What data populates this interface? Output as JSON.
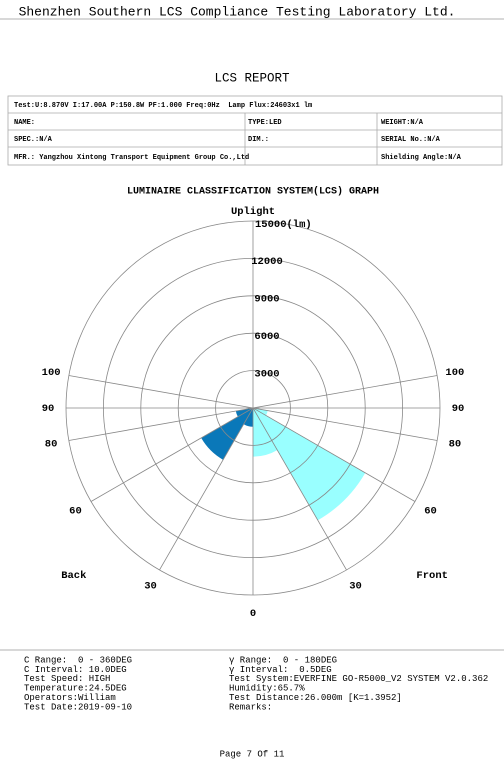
{
  "header": {
    "lab": "Shenzhen Southern LCS Compliance Testing Laboratory Ltd.",
    "title": "LCS REPORT"
  },
  "info_table": {
    "rows": [
      [
        "Test:U:8.870V I:17.00A P:150.8W PF:1.000 Freq:0Hz  Lamp Flux:24603x1 lm"
      ],
      [
        "NAME:",
        "TYPE:LED",
        "WEIGHT:N/A"
      ],
      [
        "SPEC.:N/A",
        "DIM.:",
        "SERIAL No.:N/A"
      ],
      [
        "MFR.: Yangzhou Xintong Transport Equipment Group Co.,Ltd",
        "Shielding Angle:N/A"
      ]
    ]
  },
  "chart_data": {
    "type": "polar",
    "title": "LUMINAIRE CLASSIFICATION SYSTEM(LCS) GRAPH",
    "up_label": "Uplight",
    "front_label": "Front",
    "back_label": "Back",
    "rlim": [
      0,
      15000
    ],
    "rticks": [
      3000,
      6000,
      9000,
      12000,
      {
        "value": 15000,
        "label": "15000(lm)"
      }
    ],
    "angle_ticks": [
      0,
      30,
      60,
      80,
      90,
      100
    ],
    "zone_edges": [
      0,
      30,
      60,
      80,
      90
    ],
    "series": [
      {
        "color": "#99ffff",
        "values": [
          3900,
          10400,
          1200,
          200
        ]
      },
      {
        "color": "#0a78b9",
        "values": [
          1500,
          4800,
          1400,
          400
        ]
      }
    ]
  },
  "params": {
    "left": [
      "C Range:  0 - 360DEG",
      "C Interval: 10.0DEG",
      "Test Speed: HIGH",
      "Temperature:24.5DEG",
      "Operators:William",
      "Test Date:2019-09-10"
    ],
    "right": [
      "γ Range:  0 - 180DEG",
      "γ Interval:  0.5DEG",
      "Test System:EVERFINE GO-R5000_V2 SYSTEM V2.0.362",
      "Humidity:65.7%",
      "Test Distance:26.000m [K=1.3952]",
      "Remarks:"
    ]
  },
  "footer": {
    "page": "Page 7 Of 11"
  }
}
